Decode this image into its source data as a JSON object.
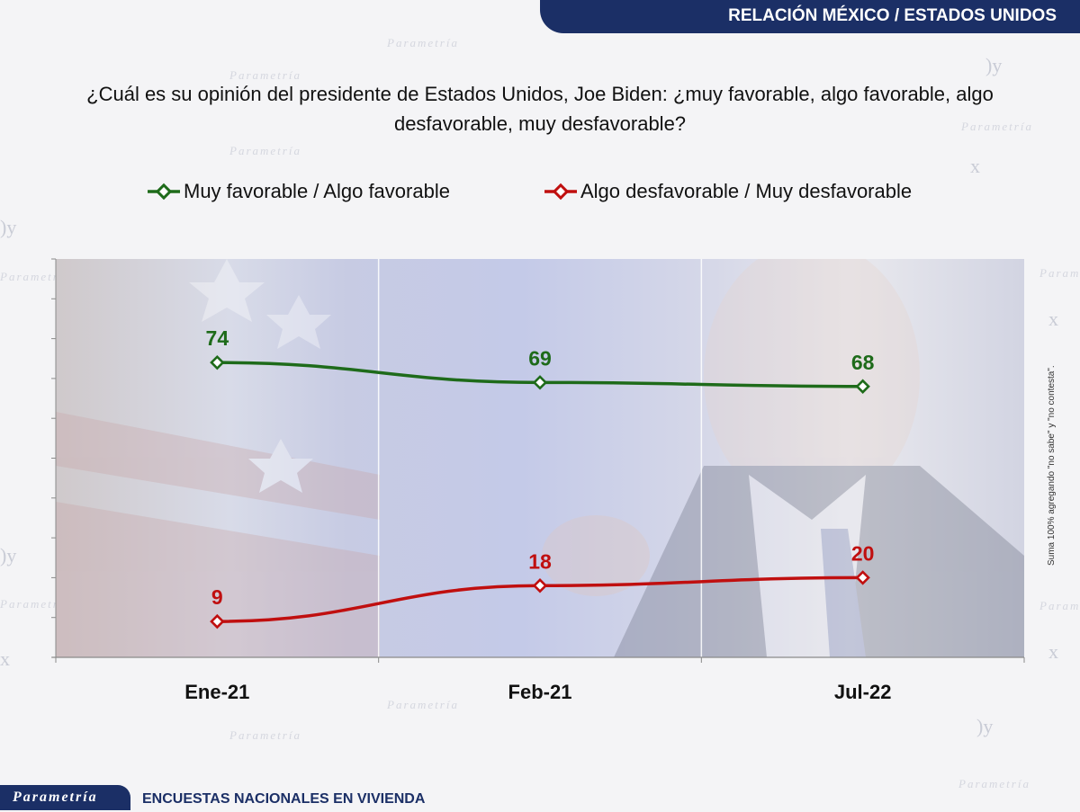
{
  "header": {
    "section_title": "RELACIÓN MÉXICO / ESTADOS UNIDOS"
  },
  "question": "¿Cuál es su opinión del presidente de Estados Unidos, Joe Biden: ¿muy favorable, algo favorable, algo desfavorable, muy desfavorable?",
  "side_note": "Suma 100% agregando \"no sabe\" y \"no contesta\".",
  "footer": {
    "brand": "Parametría",
    "label": "ENCUESTAS NACIONALES  EN VIVIENDA"
  },
  "watermark_text": "Parametría",
  "chart_data": {
    "type": "line",
    "title": "",
    "xlabel": "",
    "ylabel": "",
    "categories": [
      "Ene-21",
      "Feb-21",
      "Jul-22"
    ],
    "ylim": [
      0,
      100
    ],
    "grid": true,
    "legend_position": "top",
    "series": [
      {
        "name": "Muy favorable / Algo favorable",
        "values": [
          74,
          69,
          68
        ],
        "color": "#1e6b1a"
      },
      {
        "name": "Algo desfavorable / Muy desfavorable",
        "values": [
          9,
          18,
          20
        ],
        "color": "#c00f0f"
      }
    ]
  }
}
